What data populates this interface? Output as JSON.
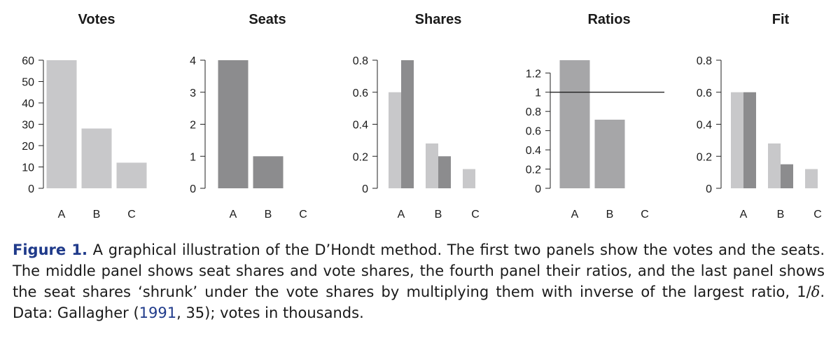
{
  "chart_data": [
    {
      "type": "bar",
      "title": "Votes",
      "categories": [
        "A",
        "B",
        "C"
      ],
      "series": [
        {
          "values": [
            60,
            28,
            12
          ],
          "color": "#c8c8ca"
        }
      ],
      "ylim": [
        0,
        60
      ],
      "yticks": [
        0,
        10,
        20,
        30,
        40,
        50,
        60
      ],
      "ytick_labels": [
        "0",
        "10",
        "20",
        "30",
        "40",
        "50",
        "60"
      ]
    },
    {
      "type": "bar",
      "title": "Seats",
      "categories": [
        "A",
        "B",
        "C"
      ],
      "series": [
        {
          "values": [
            4,
            1,
            0
          ],
          "color": "#8c8c8e"
        }
      ],
      "ylim": [
        0,
        4
      ],
      "yticks": [
        0,
        1,
        2,
        3,
        4
      ],
      "ytick_labels": [
        "0",
        "1",
        "2",
        "3",
        "4"
      ]
    },
    {
      "type": "bar",
      "title": "Shares",
      "categories": [
        "A",
        "B",
        "C"
      ],
      "series": [
        {
          "values": [
            0.6,
            0.28,
            0.12
          ],
          "color": "#c8c8ca"
        },
        {
          "values": [
            0.8,
            0.2,
            0
          ],
          "color": "#8c8c8e"
        }
      ],
      "ylim": [
        0,
        0.8
      ],
      "yticks": [
        0,
        0.2,
        0.4,
        0.6,
        0.8
      ],
      "ytick_labels": [
        "0",
        "0.2",
        "0.4",
        "0.6",
        "0.8"
      ]
    },
    {
      "type": "bar",
      "title": "Ratios",
      "categories": [
        "A",
        "B",
        "C"
      ],
      "series": [
        {
          "values": [
            1.333,
            0.714,
            0
          ],
          "color": "#a6a6a8"
        }
      ],
      "reference_line": 1,
      "ylim": [
        0,
        1.333
      ],
      "yticks": [
        0,
        0.2,
        0.4,
        0.6,
        0.8,
        1,
        1.2
      ],
      "ytick_labels": [
        "0",
        "0.2",
        "0.4",
        "0.6",
        "0.8",
        "1",
        "1.2"
      ]
    },
    {
      "type": "bar",
      "title": "Fit",
      "categories": [
        "A",
        "B",
        "C"
      ],
      "series": [
        {
          "values": [
            0.6,
            0.28,
            0.12
          ],
          "color": "#c8c8ca"
        },
        {
          "values": [
            0.6,
            0.15,
            0
          ],
          "color": "#8c8c8e"
        }
      ],
      "ylim": [
        0,
        0.8
      ],
      "yticks": [
        0,
        0.2,
        0.4,
        0.6,
        0.8
      ],
      "ytick_labels": [
        "0",
        "0.2",
        "0.4",
        "0.6",
        "0.8"
      ]
    }
  ],
  "caption": {
    "label": "Figure 1.",
    "text_1": " A graphical illustration of the D’Hondt method. The first two panels show the votes and the seats. The middle panel shows seat shares and vote shares, the fourth panel their ratios, and the last panel shows the seat shares ‘shrunk’ under the vote shares by multiplying them with inverse of the largest ratio, 1/",
    "symbol": "δ",
    "text_2": ". Data: Gallagher (",
    "link_year": "1991",
    "text_3": ", 35); votes in thousands."
  }
}
